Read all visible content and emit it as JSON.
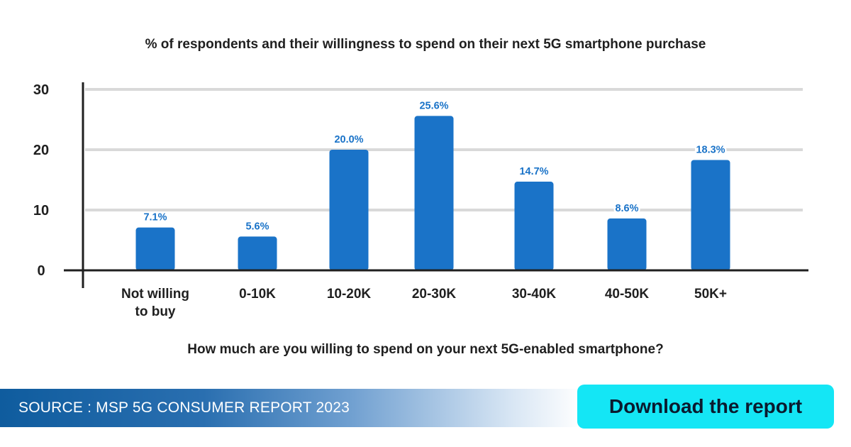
{
  "chart_data": {
    "type": "bar",
    "title": "% of respondents and their willingness to spend on their next 5G smartphone purchase",
    "xlabel": "How much are you willing to spend on your next 5G-enabled smartphone?",
    "ylabel": "",
    "ylim": [
      0,
      30
    ],
    "yticks": [
      "0",
      "10",
      "20",
      "30"
    ],
    "grid": true,
    "categories": [
      [
        "Not willing",
        "to buy"
      ],
      [
        "0-10K"
      ],
      [
        "10-20K"
      ],
      [
        "20-30K"
      ],
      [
        "30-40K"
      ],
      [
        "40-50K"
      ],
      [
        "50K+"
      ]
    ],
    "values": [
      7.1,
      5.6,
      20.0,
      25.6,
      14.7,
      8.6,
      18.3
    ],
    "value_labels": [
      "7.1%",
      "5.6%",
      "20.0%",
      "25.6%",
      "14.7%",
      "8.6%",
      "18.3%"
    ],
    "bar_color": "#1a73c8",
    "label_color": "#1a73c8"
  },
  "footer": {
    "source": "SOURCE : MSP 5G CONSUMER REPORT 2023",
    "download_label": "Download the report"
  }
}
